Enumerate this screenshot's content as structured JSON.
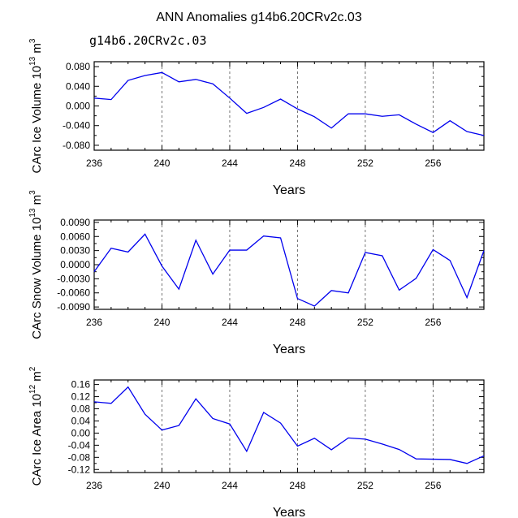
{
  "title": "ANN Anomalies g14b6.20CRv2c.03",
  "subtitle": "g14b6.20CRv2c.03",
  "subtitle_color": "#2f2fe0",
  "line_color": "#0000ee",
  "chart_data": [
    {
      "type": "line",
      "ylabel_main": "CArc Ice Volume 10",
      "ylabel_exp1": "13",
      "ylabel_unit": " m",
      "ylabel_exp2": "3",
      "xlabel": "Years",
      "xlim": [
        236,
        259
      ],
      "ylim": [
        -0.09,
        0.09
      ],
      "xticks": [
        236,
        240,
        244,
        248,
        252,
        256
      ],
      "yticks": [
        0.08,
        0.04,
        0.0,
        -0.04,
        -0.08
      ],
      "ytick_labels": [
        "0.080",
        "0.040",
        "0.000",
        "-0.040",
        "-0.080"
      ],
      "dashed_x": [
        240,
        244,
        248,
        252,
        256
      ],
      "x": [
        236,
        237,
        238,
        239,
        240,
        241,
        242,
        243,
        244,
        245,
        246,
        247,
        248,
        249,
        250,
        251,
        252,
        253,
        254,
        255,
        256,
        257,
        258,
        259
      ],
      "y": [
        0.016,
        0.013,
        0.052,
        0.062,
        0.068,
        0.049,
        0.054,
        0.045,
        0.016,
        -0.015,
        -0.003,
        0.014,
        -0.006,
        -0.022,
        -0.045,
        -0.016,
        -0.016,
        -0.021,
        -0.018,
        -0.037,
        -0.054,
        -0.03,
        -0.052,
        -0.06
      ]
    },
    {
      "type": "line",
      "ylabel_main": "CArc Snow Volume 10",
      "ylabel_exp1": "13",
      "ylabel_unit": " m",
      "ylabel_exp2": "3",
      "xlabel": "Years",
      "xlim": [
        236,
        259
      ],
      "ylim": [
        -0.0095,
        0.0095
      ],
      "xticks": [
        236,
        240,
        244,
        248,
        252,
        256
      ],
      "yticks": [
        0.009,
        0.006,
        0.003,
        0.0,
        -0.003,
        -0.006,
        -0.009
      ],
      "ytick_labels": [
        "0.0090",
        "0.0060",
        "0.0030",
        "0.0000",
        "-0.0030",
        "-0.0060",
        "-0.0090"
      ],
      "dashed_x": [
        240,
        244,
        248,
        252,
        256
      ],
      "x": [
        236,
        237,
        238,
        239,
        240,
        241,
        242,
        243,
        244,
        245,
        246,
        247,
        248,
        249,
        250,
        251,
        252,
        253,
        254,
        255,
        256,
        257,
        258,
        259
      ],
      "y": [
        -0.0015,
        0.0035,
        0.0027,
        0.0065,
        -0.0003,
        -0.0052,
        0.0052,
        -0.002,
        0.0031,
        0.0031,
        0.0061,
        0.0057,
        -0.0072,
        -0.0088,
        -0.0055,
        -0.006,
        0.0026,
        0.0019,
        -0.0054,
        -0.0029,
        0.0032,
        0.0009,
        -0.007,
        0.003
      ]
    },
    {
      "type": "line",
      "ylabel_main": "CArc Ice Area 10",
      "ylabel_exp1": "12",
      "ylabel_unit": " m",
      "ylabel_exp2": "2",
      "xlabel": "Years",
      "xlim": [
        236,
        259
      ],
      "ylim": [
        -0.13,
        0.175
      ],
      "xticks": [
        236,
        240,
        244,
        248,
        252,
        256
      ],
      "yticks": [
        0.16,
        0.12,
        0.08,
        0.04,
        0.0,
        -0.04,
        -0.08,
        -0.12
      ],
      "ytick_labels": [
        "0.16",
        "0.12",
        "0.08",
        "0.04",
        "0.00",
        "-0.04",
        "-0.08",
        "-0.12"
      ],
      "dashed_x": [
        240,
        244,
        248,
        252,
        256
      ],
      "x": [
        236,
        237,
        238,
        239,
        240,
        241,
        242,
        243,
        244,
        245,
        246,
        247,
        248,
        249,
        250,
        251,
        252,
        253,
        254,
        255,
        256,
        257,
        258,
        259
      ],
      "y": [
        0.103,
        0.098,
        0.152,
        0.062,
        0.01,
        0.025,
        0.113,
        0.048,
        0.03,
        -0.06,
        0.068,
        0.033,
        -0.043,
        -0.017,
        -0.055,
        -0.016,
        -0.02,
        -0.036,
        -0.054,
        -0.085,
        -0.086,
        -0.087,
        -0.1,
        -0.075
      ]
    }
  ]
}
